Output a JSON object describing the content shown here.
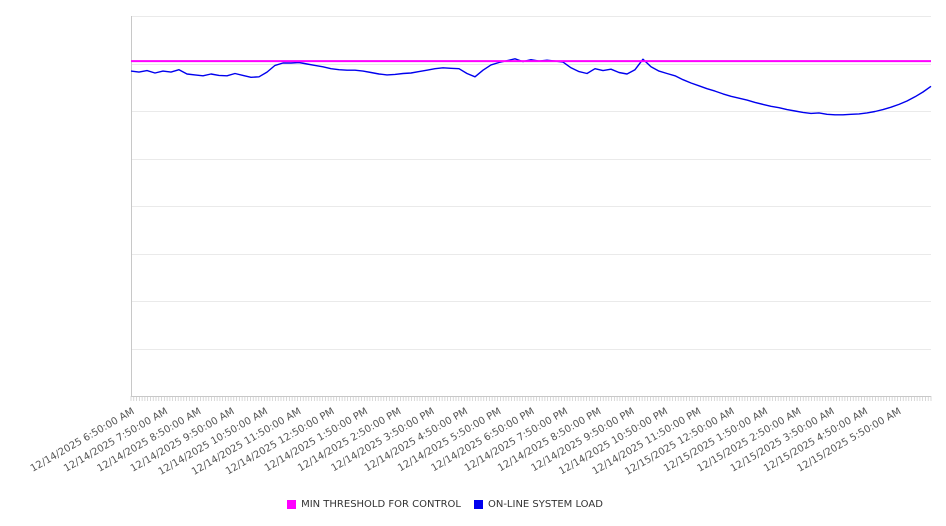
{
  "colors": {
    "background": "#ffffff",
    "gridline": "#eaeaea",
    "axis": "#c8c8c8",
    "label_text": "#555555",
    "legend_text": "#333333",
    "threshold": "#ff00ff",
    "load_line": "#0000ee"
  },
  "chart_data": {
    "type": "line",
    "title": "",
    "xlabel": "",
    "ylabel": "",
    "x_axis": {
      "interval_minutes": 5,
      "minor_ticks": 289,
      "tick_labels": [
        "12/14/2025 6:50:00 AM",
        "12/14/2025 7:50:00 AM",
        "12/14/2025 8:50:00 AM",
        "12/14/2025 9:50:00 AM",
        "12/14/2025 10:50:00 AM",
        "12/14/2025 11:50:00 AM",
        "12/14/2025 12:50:00 PM",
        "12/14/2025 1:50:00 PM",
        "12/14/2025 2:50:00 PM",
        "12/14/2025 3:50:00 PM",
        "12/14/2025 4:50:00 PM",
        "12/14/2025 5:50:00 PM",
        "12/14/2025 6:50:00 PM",
        "12/14/2025 7:50:00 PM",
        "12/14/2025 8:50:00 PM",
        "12/14/2025 9:50:00 PM",
        "12/14/2025 10:50:00 PM",
        "12/14/2025 11:50:00 PM",
        "12/15/2025 12:50:00 AM",
        "12/15/2025 1:50:00 AM",
        "12/15/2025 2:50:00 AM",
        "12/15/2025 3:50:00 AM",
        "12/15/2025 4:50:00 AM",
        "12/15/2025 5:50:00 AM"
      ]
    },
    "y_axis": {
      "min": 0,
      "max": 80,
      "gridline_interval": 10,
      "tick_labels_visible": false
    },
    "legend_position": "bottom",
    "series": [
      {
        "name": "MIN THRESHOLD FOR CONTROL",
        "type": "threshold",
        "color": "#ff00ff",
        "value": 70.5
      },
      {
        "name": "ON-LINE SYSTEM LOAD",
        "type": "line",
        "color": "#0000ee",
        "values": [
          68.4,
          68.2,
          68.5,
          68.0,
          68.4,
          68.2,
          68.7,
          67.8,
          67.6,
          67.4,
          67.8,
          67.5,
          67.4,
          67.9,
          67.5,
          67.1,
          67.2,
          68.2,
          69.6,
          70.1,
          70.1,
          70.2,
          69.9,
          69.6,
          69.3,
          68.9,
          68.7,
          68.6,
          68.6,
          68.4,
          68.1,
          67.8,
          67.6,
          67.7,
          67.9,
          68.0,
          68.3,
          68.6,
          68.9,
          69.1,
          69.0,
          68.9,
          67.9,
          67.2,
          68.6,
          69.7,
          70.2,
          70.6,
          71.0,
          70.4,
          70.8,
          70.5,
          70.7,
          70.5,
          70.3,
          69.1,
          68.3,
          67.9,
          68.9,
          68.5,
          68.8,
          68.1,
          67.8,
          68.7,
          70.9,
          69.3,
          68.4,
          67.9,
          67.4,
          66.6,
          65.9,
          65.3,
          64.7,
          64.2,
          63.6,
          63.1,
          62.7,
          62.3,
          61.8,
          61.4,
          61.0,
          60.7,
          60.3,
          60.0,
          59.7,
          59.5,
          59.6,
          59.3,
          59.2,
          59.2,
          59.3,
          59.4,
          59.6,
          59.9,
          60.3,
          60.8,
          61.4,
          62.1,
          63.0,
          64.0,
          65.2
        ]
      }
    ]
  }
}
